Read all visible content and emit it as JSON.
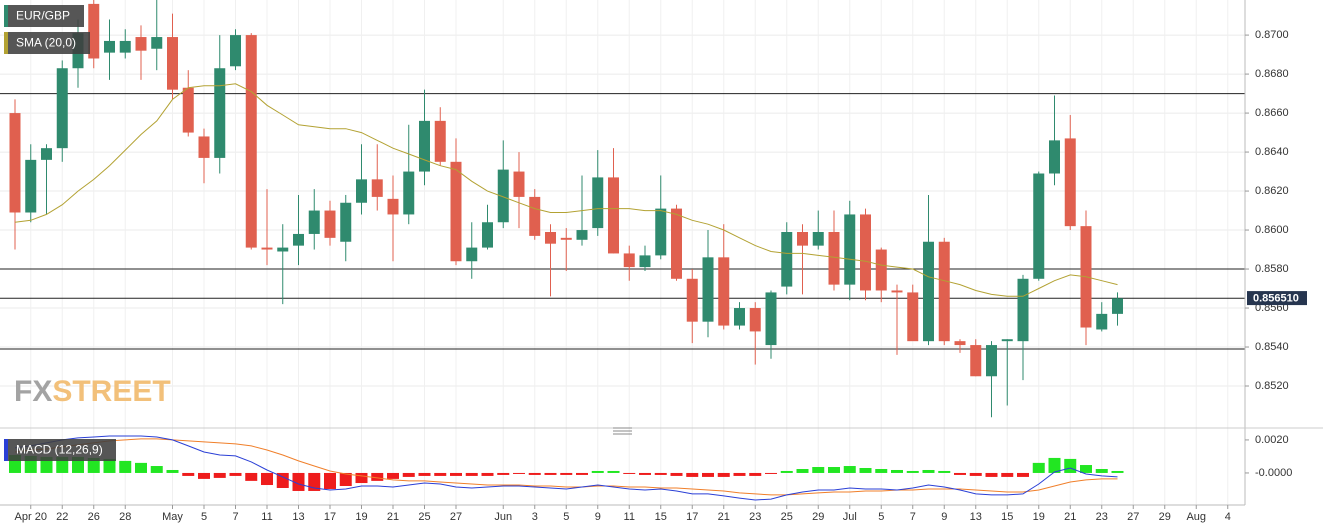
{
  "chart_data": [
    {
      "type": "candlestick",
      "name": "EUR/GBP",
      "categories": [
        null,
        "Apr 20",
        null,
        "22",
        null,
        "26",
        null,
        "28",
        null,
        null,
        "May",
        null,
        "5",
        null,
        "7",
        null,
        "11",
        null,
        "13",
        null,
        "17",
        null,
        "19",
        null,
        "21",
        null,
        "25",
        null,
        "27",
        null,
        null,
        "Jun",
        null,
        "3",
        null,
        "5",
        null,
        "9",
        null,
        "11",
        null,
        "15",
        null,
        "17",
        null,
        "21",
        null,
        "23",
        null,
        "25",
        null,
        "29",
        null,
        "Jul",
        null,
        "5",
        null,
        "7",
        null,
        "9",
        null,
        "13",
        null,
        "15",
        null,
        "19",
        null,
        "21",
        null,
        "23",
        null,
        "27",
        null,
        "29",
        null,
        "Aug",
        null,
        "4"
      ],
      "open": [
        0.866,
        0.8609,
        0.8636,
        0.8642,
        0.8683,
        0.8716,
        0.8691,
        0.8691,
        0.8699,
        0.8693,
        0.8699,
        0.8673,
        0.8648,
        0.8637,
        0.8684,
        0.87,
        0.8591,
        0.8589,
        0.8592,
        0.8598,
        0.861,
        0.8594,
        0.8614,
        0.8626,
        0.8616,
        0.8608,
        0.863,
        0.8656,
        0.8635,
        0.8584,
        0.8591,
        0.8604,
        0.863,
        0.8617,
        0.8599,
        0.8596,
        0.8595,
        0.8601,
        0.8627,
        0.8588,
        0.8581,
        0.8587,
        0.8611,
        0.8575,
        0.8553,
        0.8586,
        0.8551,
        0.856,
        0.8541,
        0.8571,
        0.8599,
        0.8592,
        0.8599,
        0.8572,
        0.8608,
        0.859,
        0.8569,
        0.8568,
        0.8543,
        0.8594,
        0.8543,
        0.8541,
        0.8525,
        0.8543,
        0.8543,
        0.8575,
        0.8629,
        0.8647,
        0.8602,
        0.8549,
        0.8557,
        null,
        null,
        null,
        null,
        null,
        null,
        null
      ],
      "high": [
        0.8667,
        0.8644,
        0.8644,
        0.8687,
        0.8708,
        0.8718,
        0.8708,
        0.8703,
        0.8705,
        0.8718,
        0.8711,
        0.8682,
        0.8652,
        0.87,
        0.8703,
        0.8701,
        0.8621,
        0.8603,
        0.8618,
        0.8621,
        0.8615,
        0.8618,
        0.8644,
        0.8644,
        0.8628,
        0.8654,
        0.8672,
        0.8663,
        0.8647,
        0.8604,
        0.8613,
        0.8646,
        0.864,
        0.8621,
        0.8603,
        0.8601,
        0.8628,
        0.8641,
        0.8642,
        0.8592,
        0.8592,
        0.8628,
        0.8613,
        0.858,
        0.86,
        0.8603,
        0.8563,
        0.8563,
        0.8569,
        0.8604,
        0.8603,
        0.861,
        0.861,
        0.8615,
        0.8611,
        0.8591,
        0.8572,
        0.8572,
        0.8618,
        0.8596,
        0.8544,
        0.8544,
        0.8543,
        0.8544,
        0.8577,
        0.863,
        0.8669,
        0.8659,
        0.861,
        0.8563,
        0.8568,
        null,
        null,
        null,
        null,
        null,
        null,
        null
      ],
      "low": [
        0.859,
        0.8604,
        0.8608,
        0.8635,
        0.8673,
        0.8683,
        0.8677,
        0.8688,
        0.8677,
        0.8682,
        0.8667,
        0.8648,
        0.8624,
        0.8629,
        0.8682,
        0.859,
        0.8582,
        0.8562,
        0.8582,
        0.859,
        0.8592,
        0.8584,
        0.8608,
        0.861,
        0.8584,
        0.8603,
        0.8623,
        0.8633,
        0.8582,
        0.8575,
        0.859,
        0.8601,
        0.8601,
        0.8595,
        0.8566,
        0.8579,
        0.8592,
        0.8597,
        0.8588,
        0.8574,
        0.8579,
        0.8585,
        0.8574,
        0.8542,
        0.8545,
        0.8549,
        0.8549,
        0.8531,
        0.8534,
        0.8567,
        0.8567,
        0.859,
        0.8569,
        0.8564,
        0.8564,
        0.8563,
        0.8536,
        0.8544,
        0.8541,
        0.8541,
        0.8537,
        0.8525,
        0.8504,
        0.851,
        0.8523,
        0.8574,
        0.8623,
        0.86,
        0.8541,
        0.8548,
        0.8551,
        null,
        null,
        null,
        null,
        null,
        null,
        null
      ],
      "close": [
        0.8609,
        0.8636,
        0.8642,
        0.8683,
        0.8701,
        0.8688,
        0.8697,
        0.8697,
        0.8692,
        0.8699,
        0.8672,
        0.865,
        0.8637,
        0.8683,
        0.87,
        0.8591,
        0.859,
        0.8591,
        0.8598,
        0.861,
        0.8596,
        0.8614,
        0.8626,
        0.8617,
        0.8608,
        0.863,
        0.8656,
        0.8635,
        0.8584,
        0.8591,
        0.8604,
        0.8631,
        0.8617,
        0.8597,
        0.8593,
        0.8595,
        0.86,
        0.8627,
        0.8588,
        0.8581,
        0.8587,
        0.8611,
        0.8575,
        0.8553,
        0.8586,
        0.8551,
        0.856,
        0.8548,
        0.8568,
        0.8599,
        0.8592,
        0.8599,
        0.8572,
        0.8608,
        0.8569,
        0.8569,
        0.8568,
        0.8543,
        0.8594,
        0.8543,
        0.8541,
        0.8525,
        0.8541,
        0.8544,
        0.8575,
        0.8629,
        0.8646,
        0.8602,
        0.855,
        0.8557,
        0.8565,
        null,
        null,
        null,
        null,
        null,
        null,
        null
      ],
      "up_color": "#2f8a6e",
      "down_color": "#e0604f",
      "series": [
        {
          "name": "SMA (20,0)",
          "color": "#b3a233",
          "values": [
            0.8604,
            0.8605,
            0.8608,
            0.8613,
            0.862,
            0.8626,
            0.8633,
            0.8641,
            0.8649,
            0.8656,
            0.8667,
            0.8673,
            0.8674,
            0.8674,
            0.8675,
            0.8671,
            0.8664,
            0.8659,
            0.8654,
            0.8653,
            0.8652,
            0.8652,
            0.865,
            0.8646,
            0.8642,
            0.8639,
            0.8636,
            0.8633,
            0.8631,
            0.8625,
            0.862,
            0.8617,
            0.8614,
            0.8611,
            0.8609,
            0.8609,
            0.861,
            0.8611,
            0.8611,
            0.8611,
            0.861,
            0.861,
            0.8608,
            0.8605,
            0.8603,
            0.86,
            0.8596,
            0.8592,
            0.8589,
            0.8588,
            0.8588,
            0.8587,
            0.8586,
            0.8585,
            0.8584,
            0.8582,
            0.8581,
            0.858,
            0.8576,
            0.8574,
            0.8572,
            0.8569,
            0.8567,
            0.8566,
            0.8566,
            0.857,
            0.8574,
            0.8577,
            0.8576,
            0.8574,
            0.8572,
            null,
            null,
            null,
            null,
            null,
            null,
            null
          ]
        }
      ],
      "levels": [
        0.867,
        0.858,
        0.8565,
        0.8539
      ],
      "last_price": {
        "value": 0.85651,
        "label": "0.856510"
      },
      "ylim": [
        0.85,
        0.8718
      ],
      "yticks": [
        {
          "value": 0.852,
          "label": "0.8520"
        },
        {
          "value": 0.854,
          "label": "0.8540"
        },
        {
          "value": 0.856,
          "label": "0.8560"
        },
        {
          "value": 0.858,
          "label": "0.8580"
        },
        {
          "value": 0.86,
          "label": "0.8600"
        },
        {
          "value": 0.862,
          "label": "0.8620"
        },
        {
          "value": 0.864,
          "label": "0.8640"
        },
        {
          "value": 0.866,
          "label": "0.8660"
        },
        {
          "value": 0.868,
          "label": "0.8680"
        },
        {
          "value": 0.87,
          "label": "0.8700"
        }
      ],
      "grid": true,
      "watermark": [
        "FX",
        "STREET"
      ]
    },
    {
      "type": "macd",
      "name": "MACD (12,26,9)",
      "histogram": [
        0.00109,
        0.00103,
        0.00097,
        0.00097,
        0.00097,
        0.00091,
        0.00085,
        0.00073,
        0.00061,
        0.00042,
        0.00018,
        -0.00018,
        -0.00036,
        -0.0003,
        -0.00018,
        -0.00048,
        -0.00073,
        -0.00091,
        -0.00109,
        -0.00109,
        -0.00097,
        -0.00079,
        -0.00061,
        -0.00048,
        -0.00036,
        -0.00024,
        -0.00018,
        -0.00018,
        -0.00018,
        -0.00018,
        -0.00018,
        -0.00012,
        -6e-05,
        -0.00012,
        -0.00012,
        -0.00012,
        -0.00012,
        0.00012,
        0.00012,
        -6e-05,
        -0.00012,
        -0.00012,
        -0.00018,
        -0.00024,
        -0.00024,
        -0.00024,
        -0.00018,
        -0.00018,
        -6e-05,
        0.00012,
        0.00024,
        0.00036,
        0.00036,
        0.00042,
        0.0003,
        0.00024,
        0.00018,
        0.00012,
        0.00018,
        0.00012,
        -0.00012,
        -0.00018,
        -0.00024,
        -0.00024,
        -0.00024,
        0.00061,
        0.00091,
        0.00085,
        0.00048,
        0.00024,
        0.00012,
        null,
        null,
        null,
        null,
        null,
        null,
        null
      ],
      "pos_color": "#22e622",
      "neg_color": "#ee1c1c",
      "macd_color": "#2a3fd6",
      "signal_color": "#f07f2a",
      "macd": [
        0.00152,
        0.00164,
        0.00182,
        0.002,
        0.00212,
        0.00218,
        0.00224,
        0.00224,
        0.00224,
        0.00218,
        0.002,
        0.00164,
        0.00127,
        0.00109,
        0.00103,
        0.00067,
        0.00018,
        -0.00024,
        -0.00067,
        -0.00091,
        -0.00103,
        -0.00097,
        -0.00079,
        -0.00079,
        -0.00085,
        -0.00073,
        -0.00061,
        -0.00067,
        -0.00085,
        -0.00091,
        -0.00085,
        -0.00079,
        -0.00079,
        -0.00085,
        -0.00091,
        -0.00097,
        -0.00085,
        -0.00073,
        -0.00085,
        -0.00097,
        -0.00103,
        -0.00097,
        -0.00109,
        -0.00127,
        -0.00127,
        -0.00139,
        -0.00152,
        -0.00164,
        -0.00158,
        -0.00133,
        -0.00115,
        -0.00103,
        -0.00103,
        -0.00091,
        -0.00097,
        -0.00097,
        -0.00103,
        -0.00091,
        -0.00073,
        -0.00085,
        -0.00103,
        -0.00127,
        -0.00133,
        -0.00133,
        -0.00127,
        -0.00067,
        6e-05,
        0.0003,
        -6e-05,
        -0.00018,
        -0.00024,
        null,
        null,
        null,
        null,
        null,
        null,
        null
      ],
      "signal": [
        0.00127,
        0.00139,
        0.00145,
        0.00158,
        0.0017,
        0.00182,
        0.00194,
        0.002,
        0.00206,
        0.00206,
        0.002,
        0.00194,
        0.00188,
        0.00182,
        0.00176,
        0.00164,
        0.00139,
        0.00109,
        0.00073,
        0.00042,
        0.00012,
        -6e-05,
        -0.00018,
        -0.0003,
        -0.00042,
        -0.00048,
        -0.00048,
        -0.00055,
        -0.00061,
        -0.00067,
        -0.00073,
        -0.00073,
        -0.00073,
        -0.00079,
        -0.00079,
        -0.00085,
        -0.00085,
        -0.00079,
        -0.00079,
        -0.00085,
        -0.00085,
        -0.00091,
        -0.00091,
        -0.00097,
        -0.00103,
        -0.00109,
        -0.00121,
        -0.00127,
        -0.00133,
        -0.00133,
        -0.00127,
        -0.00121,
        -0.00115,
        -0.00115,
        -0.00109,
        -0.00109,
        -0.00103,
        -0.00103,
        -0.00097,
        -0.00097,
        -0.00097,
        -0.00103,
        -0.00109,
        -0.00115,
        -0.00115,
        -0.00103,
        -0.00079,
        -0.00055,
        -0.00042,
        -0.00036,
        -0.00036,
        null,
        null,
        null,
        null,
        null,
        null,
        null
      ],
      "ylim": [
        -0.00194,
        0.00248
      ],
      "yticks": [
        {
          "value": 0,
          "label": "-0.0000"
        },
        {
          "value": 0.002,
          "label": "0.0020"
        }
      ]
    }
  ]
}
